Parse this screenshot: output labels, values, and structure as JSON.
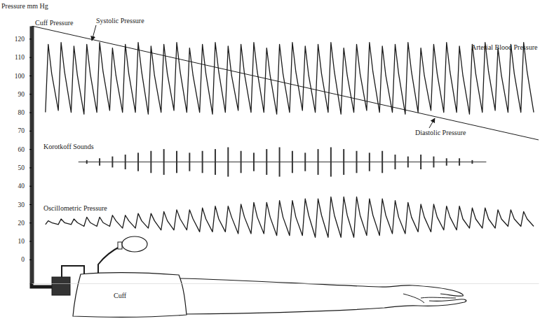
{
  "chart_data": {
    "type": "line",
    "y_label": "Pressure mm Hg",
    "ylim": [
      -13,
      127
    ],
    "yticks": [
      0,
      10,
      20,
      30,
      40,
      50,
      60,
      70,
      80,
      90,
      100,
      110,
      120
    ],
    "xlim": [
      0,
      730
    ],
    "tick_labels": "y",
    "grid": false,
    "annotations": [
      "Systolic Pressure",
      "Diastolic Pressure",
      "Cuff"
    ],
    "x": [
      20,
      24,
      29,
      38.5,
      42.5,
      47.5,
      57,
      61,
      66,
      75.5,
      79.5,
      84.5,
      94,
      98,
      103,
      112.5,
      116.5,
      121.5,
      131,
      135,
      140,
      149.5,
      153.5,
      158.5,
      168,
      172,
      177,
      186.5,
      190.5,
      195.5,
      205,
      209,
      214,
      223.5,
      227.5,
      232.5,
      242,
      246,
      251,
      260.5,
      264.5,
      269.5,
      279,
      283,
      288,
      297.5,
      301.5,
      306.5,
      316,
      320,
      325,
      334.5,
      338.5,
      343.5,
      353,
      357,
      362,
      371.5,
      375.5,
      380.5,
      390,
      394,
      399,
      408.5,
      412.5,
      417.5,
      427,
      431,
      436,
      445.5,
      449.5,
      454.5,
      464,
      468,
      473,
      482.5,
      486.5,
      491.5,
      501,
      505,
      510,
      519.5,
      523.5,
      528.5,
      538,
      542,
      547,
      556.5,
      560.5,
      565.5,
      575,
      579,
      584,
      593.5,
      597.5,
      602.5,
      612,
      616,
      621,
      630.5,
      634.5,
      639.5,
      649,
      653,
      658,
      667.5,
      671.5,
      676.5,
      686,
      690,
      695,
      704.5,
      708.5,
      713.5,
      723
    ],
    "series": [
      {
        "name": "Cuff Pressure",
        "type": "line",
        "color": "#1a1a1a",
        "x": [
          0,
          730
        ],
        "values": [
          127,
          65
        ]
      },
      {
        "name": "Arterial Blood Pressure",
        "type": "line",
        "color": "#1a1a1a",
        "values": [
          80,
          117,
          101,
          81,
          118,
          102,
          80,
          116,
          100,
          79,
          117,
          101,
          80,
          118,
          102,
          81,
          115,
          100,
          80,
          117,
          101,
          80,
          118,
          102,
          79,
          116,
          100,
          80,
          117,
          101,
          81,
          118,
          102,
          80,
          115,
          100,
          80,
          117,
          101,
          79,
          118,
          102,
          80,
          116,
          100,
          81,
          117,
          101,
          80,
          118,
          102,
          80,
          115,
          100,
          79,
          117,
          101,
          80,
          118,
          102,
          81,
          116,
          100,
          80,
          117,
          101,
          80,
          118,
          102,
          79,
          115,
          100,
          80,
          117,
          101,
          81,
          118,
          102,
          80,
          116,
          100,
          80,
          117,
          101,
          79,
          118,
          102,
          80,
          115,
          100,
          81,
          117,
          101,
          80,
          118,
          102,
          80,
          116,
          100,
          79,
          117,
          101,
          80,
          118,
          102,
          81,
          115,
          100,
          80,
          117,
          101,
          80,
          118,
          102,
          80
        ]
      },
      {
        "name": "Korotkoff Sounds",
        "type": "spike",
        "color": "#333333",
        "baseline": 53,
        "x": [
          79.5,
          98,
          116.5,
          135,
          153.5,
          172,
          190.5,
          209,
          227.5,
          246,
          264.5,
          283,
          301.5,
          320,
          338.5,
          357,
          375.5,
          394,
          412.5,
          431,
          449.5,
          468,
          486.5,
          505,
          523.5,
          542,
          560.5,
          579,
          597.5,
          616,
          634.5
        ],
        "values": [
          1,
          2,
          3,
          4,
          5,
          6,
          7,
          6,
          5,
          6,
          7,
          8,
          6,
          5,
          7,
          8,
          6,
          5,
          7,
          8,
          7,
          6,
          5,
          6,
          4,
          3,
          4,
          3,
          2,
          2,
          1
        ]
      },
      {
        "name": "Oscillometric Pressure",
        "type": "line",
        "color": "#1a1a1a",
        "values": [
          19,
          21,
          20,
          19,
          22,
          20,
          19,
          22,
          20,
          18,
          23,
          20,
          18,
          23,
          20,
          18,
          24,
          21,
          17,
          24,
          21,
          17,
          25,
          21,
          17,
          25,
          21,
          16,
          26,
          21,
          16,
          27,
          22,
          16,
          27,
          22,
          15,
          28,
          22,
          15,
          29,
          22,
          15,
          29,
          23,
          14,
          30,
          23,
          14,
          31,
          23,
          14,
          31,
          23,
          13,
          32,
          23,
          13,
          32,
          23,
          13,
          33,
          24,
          12,
          33,
          24,
          12,
          34,
          24,
          12,
          34,
          24,
          12,
          34,
          24,
          13,
          33,
          24,
          13,
          33,
          24,
          14,
          32,
          23,
          14,
          31,
          23,
          15,
          30,
          23,
          15,
          30,
          23,
          16,
          29,
          23,
          16,
          29,
          22,
          17,
          28,
          22,
          17,
          28,
          22,
          17,
          27,
          22,
          18,
          27,
          22,
          18,
          26,
          22,
          18
        ]
      }
    ]
  }
}
